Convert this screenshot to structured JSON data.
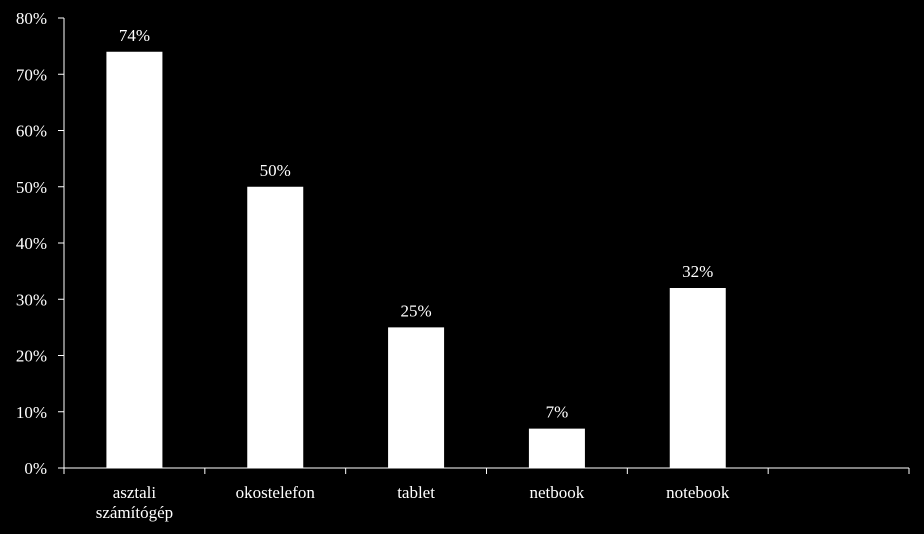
{
  "chart_data": {
    "type": "bar",
    "categories": [
      [
        "asztali",
        "számítógép"
      ],
      [
        "okostelefon"
      ],
      [
        "tablet"
      ],
      [
        "netbook"
      ],
      [
        "notebook"
      ],
      [
        ""
      ]
    ],
    "values": [
      74,
      50,
      25,
      7,
      32,
      null
    ],
    "value_labels": [
      "74%",
      "50%",
      "25%",
      "7%",
      "32%",
      ""
    ],
    "ylim": [
      0,
      80
    ],
    "yticks": [
      0,
      10,
      20,
      30,
      40,
      50,
      60,
      70,
      80
    ],
    "ytick_labels": [
      "0%",
      "10%",
      "20%",
      "30%",
      "40%",
      "50%",
      "60%",
      "70%",
      "80%"
    ],
    "title": "",
    "xlabel": "",
    "ylabel": "",
    "grid": false,
    "legend": "none",
    "colors": {
      "background": "#000000",
      "bar": "#ffffff",
      "axis": "#ffffff",
      "text": "#ffffff"
    }
  }
}
